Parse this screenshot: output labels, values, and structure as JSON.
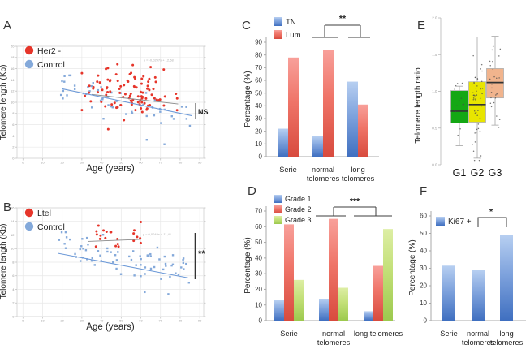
{
  "panels": [
    {
      "letter": "A"
    },
    {
      "letter": "B"
    },
    {
      "letter": "C"
    },
    {
      "letter": "D"
    },
    {
      "letter": "E"
    },
    {
      "letter": "F"
    }
  ],
  "chart_data": [
    {
      "id": "A",
      "type": "scatter",
      "xlabel": "Age (years)",
      "ylabel": "Telomere length (Kb)",
      "xlim": [
        -3,
        92
      ],
      "ylim": [
        0,
        20
      ],
      "xtick_step": 10,
      "ytick_step": 2,
      "annotation": "NS",
      "regression_label": "y = -0,0297x + 12,68",
      "series": [
        {
          "name": "Her2 -",
          "color": "#e6352a",
          "marker": "circle",
          "n": 100,
          "age_range": [
            30,
            81
          ],
          "age_mean": 55,
          "age_sd": 11.5,
          "intercept": 12.9,
          "slope": -0.028,
          "noise": 2.2,
          "clip": [
            5.2,
            16.8
          ],
          "seed": 7,
          "trend": {
            "x1": 35,
            "y1": 11.4,
            "x2": 79,
            "y2": 9.7,
            "color": "#8a8a8a"
          }
        },
        {
          "name": "Control",
          "color": "#84a9da",
          "marker": "square",
          "n": 56,
          "age_range": [
            19,
            87
          ],
          "intercept": 14.1,
          "slope": -0.077,
          "noise": 1.5,
          "clip": [
            5.8,
            14.8
          ],
          "seed": 21,
          "outliers": [
            [
              63,
              3.3
            ],
            [
              72,
              2.5
            ]
          ],
          "trend": {
            "x1": 20,
            "y1": 12.4,
            "x2": 86,
            "y2": 7.6,
            "color": "#6f9bd8"
          }
        }
      ]
    },
    {
      "id": "B",
      "type": "scatter",
      "xlabel": "Age (years)",
      "ylabel": "Telomere length (Kb)",
      "xlim": [
        -3,
        92
      ],
      "ylim": [
        0,
        16
      ],
      "xtick_step": 10,
      "ytick_step": 2,
      "annotation": "**",
      "regression_label": "y = 0,0049x + 11,41",
      "series": [
        {
          "name": "Ltel",
          "color": "#e6352a",
          "marker": "circle",
          "n": 22,
          "age_range": [
            36,
            60
          ],
          "intercept": 12.1,
          "slope": 0,
          "noise": 0.95,
          "clip": [
            10.3,
            14.0
          ],
          "seed": 5,
          "trend": {
            "x1": 33,
            "y1": 11.05,
            "x2": 60,
            "y2": 11.35,
            "color": "#8a8a8a"
          }
        },
        {
          "name": "Control",
          "color": "#84a9da",
          "marker": "square",
          "n": 72,
          "age_range": [
            18,
            86
          ],
          "intercept": 11.5,
          "slope": -0.055,
          "noise": 1.35,
          "clip": [
            3.3,
            12.4
          ],
          "seed": 11,
          "outliers": [
            [
              62,
              3.6
            ],
            [
              74,
              3.3
            ]
          ],
          "trend": {
            "x1": 18,
            "y1": 9.3,
            "x2": 84,
            "y2": 5.7,
            "color": "#6f9bd8"
          }
        }
      ]
    },
    {
      "id": "C",
      "type": "bar",
      "ylabel": "Percentage (%)",
      "ylim": [
        0,
        90
      ],
      "ytick_step": 10,
      "categories": [
        "Serie",
        "normal\ntelomeres",
        "long\ntelomeres"
      ],
      "series": [
        {
          "name": "TN",
          "color": "blue",
          "values": [
            22,
            16,
            59
          ]
        },
        {
          "name": "Lum",
          "color": "red",
          "values": [
            78,
            84,
            41
          ]
        }
      ],
      "significance": {
        "label": "**",
        "between": [
          1,
          2
        ]
      }
    },
    {
      "id": "D",
      "type": "bar",
      "ylabel": "Percentage (%)",
      "ylim": [
        0,
        70
      ],
      "ytick_step": 10,
      "categories": [
        "Serie",
        "normal\ntelomeres",
        "long telomeres"
      ],
      "series": [
        {
          "name": "Grade 1",
          "color": "blue",
          "values": [
            13,
            14,
            6
          ]
        },
        {
          "name": "Grade 2",
          "color": "red",
          "values": [
            61.5,
            65,
            35
          ]
        },
        {
          "name": "Grade 3",
          "color": "green",
          "values": [
            26,
            21,
            58.5
          ]
        }
      ],
      "significance": {
        "label": "***",
        "between": [
          1,
          2
        ]
      }
    },
    {
      "id": "E",
      "type": "box",
      "ylabel": "Telomere length ratio",
      "ylim": [
        0,
        2.0
      ],
      "yticks": [
        0,
        0.5,
        1.0,
        1.5,
        2.0
      ],
      "groups": [
        {
          "name": "G1",
          "color": "#14a714",
          "box": [
            0.57,
            1.01
          ],
          "median": 0.73,
          "whisker": [
            0.26,
            1.07
          ],
          "n_points": 13,
          "seed": 3,
          "spread": 0.24
        },
        {
          "name": "G2",
          "color": "#e8e500",
          "box": [
            0.58,
            1.13
          ],
          "median": 0.82,
          "whisker": [
            0.09,
            1.74
          ],
          "n_points": 50,
          "seed": 9,
          "spread": 0.4
        },
        {
          "name": "G3",
          "color": "#f1b48d",
          "box": [
            0.91,
            1.31
          ],
          "median": 1.12,
          "whisker": [
            0.54,
            1.75
          ],
          "n_points": 26,
          "seed": 14,
          "spread": 0.32
        }
      ]
    },
    {
      "id": "F",
      "type": "bar",
      "ylabel": "Percentage (%)",
      "ylim": [
        0,
        60
      ],
      "ytick_step": 10,
      "categories": [
        "Serie",
        "normal\ntelomeres",
        "long\ntelomeres"
      ],
      "series": [
        {
          "name": "Ki67 +",
          "color": "blue",
          "values": [
            31.5,
            29,
            49
          ]
        }
      ],
      "significance": {
        "label": "*",
        "between": [
          1,
          2
        ]
      }
    }
  ]
}
